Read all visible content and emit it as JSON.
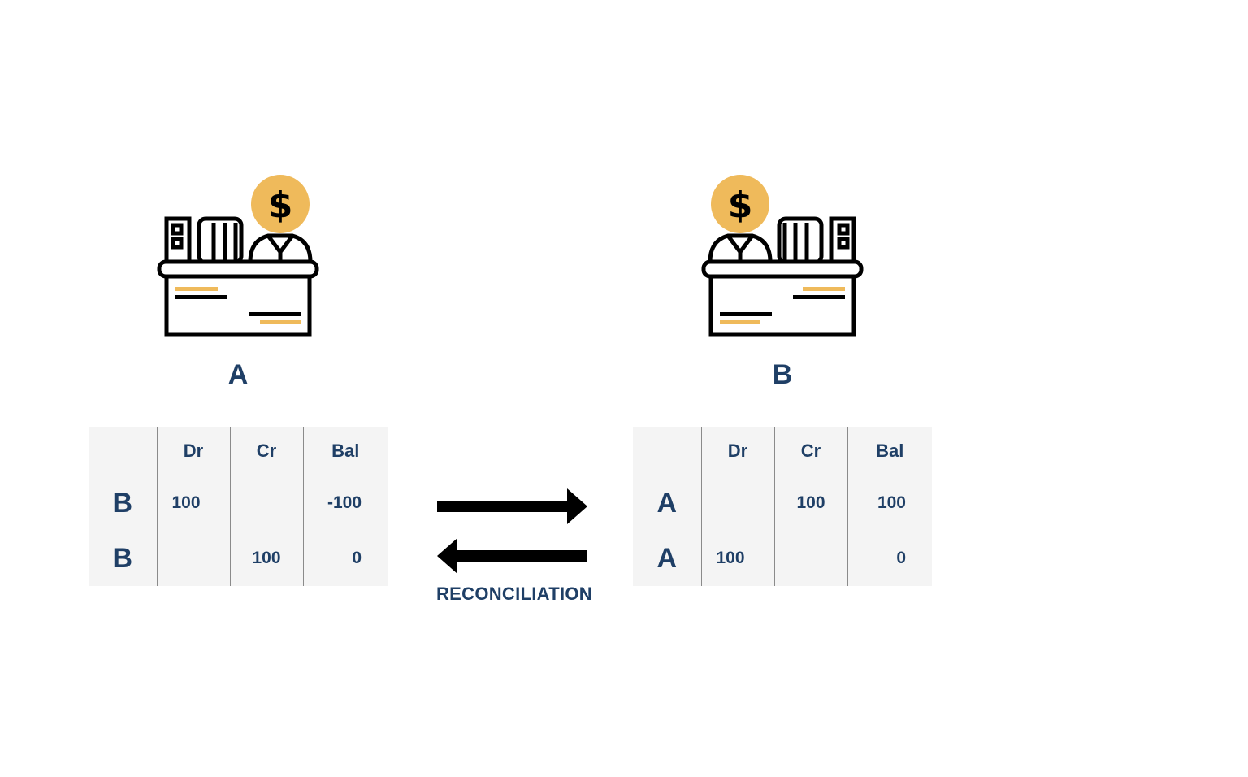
{
  "colors": {
    "accent": "#efba5b",
    "text": "#1f3f66",
    "line": "#000000",
    "table_bg": "#f4f4f4"
  },
  "parties": [
    {
      "label": "A",
      "icon": "banker-at-desk-icon",
      "ledger": {
        "columns": [
          "",
          "Dr",
          "Cr",
          "Bal"
        ],
        "rows": [
          {
            "account": "B",
            "dr": "100",
            "cr": "",
            "bal": "-100"
          },
          {
            "account": "B",
            "dr": "",
            "cr": "100",
            "bal": "0"
          }
        ]
      }
    },
    {
      "label": "B",
      "icon": "banker-at-desk-icon",
      "ledger": {
        "columns": [
          "",
          "Dr",
          "Cr",
          "Bal"
        ],
        "rows": [
          {
            "account": "A",
            "dr": "",
            "cr": "100",
            "bal": "100"
          },
          {
            "account": "A",
            "dr": "100",
            "cr": "",
            "bal": "0"
          }
        ]
      }
    }
  ],
  "reconciliation": {
    "label": "RECONCILIATION",
    "icon": "bidirectional-arrows-icon"
  }
}
